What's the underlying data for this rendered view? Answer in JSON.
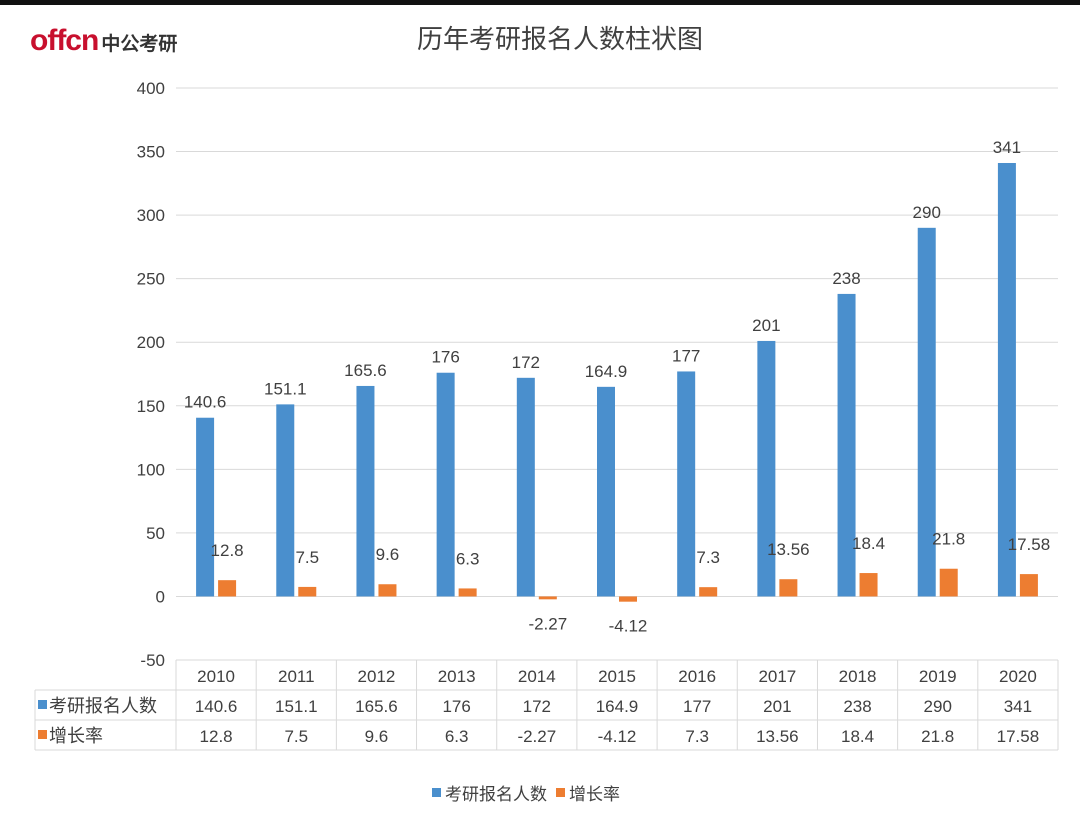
{
  "logo": {
    "brand": "offcn",
    "name": "中公考研"
  },
  "colors": {
    "series1": "#4a8fcd",
    "series2": "#ed7d31",
    "grid": "#d9d9d9",
    "text": "#404040"
  },
  "chart_data": {
    "type": "bar",
    "title": "历年考研报名人数柱状图",
    "categories": [
      "2010",
      "2011",
      "2012",
      "2013",
      "2014",
      "2015",
      "2016",
      "2017",
      "2018",
      "2019",
      "2020"
    ],
    "series": [
      {
        "name": "考研报名人数",
        "values": [
          140.6,
          151.1,
          165.6,
          176,
          172,
          164.9,
          177,
          201,
          238,
          290,
          341
        ]
      },
      {
        "name": "增长率",
        "values": [
          12.8,
          7.5,
          9.6,
          6.3,
          -2.27,
          -4.12,
          7.3,
          13.56,
          18.4,
          21.8,
          17.58
        ]
      }
    ],
    "ylim": [
      -50,
      400
    ],
    "yticks": [
      400,
      350,
      300,
      250,
      200,
      150,
      100,
      50,
      0,
      -50
    ],
    "grid": true,
    "data_table": true,
    "legend": "bottom"
  }
}
